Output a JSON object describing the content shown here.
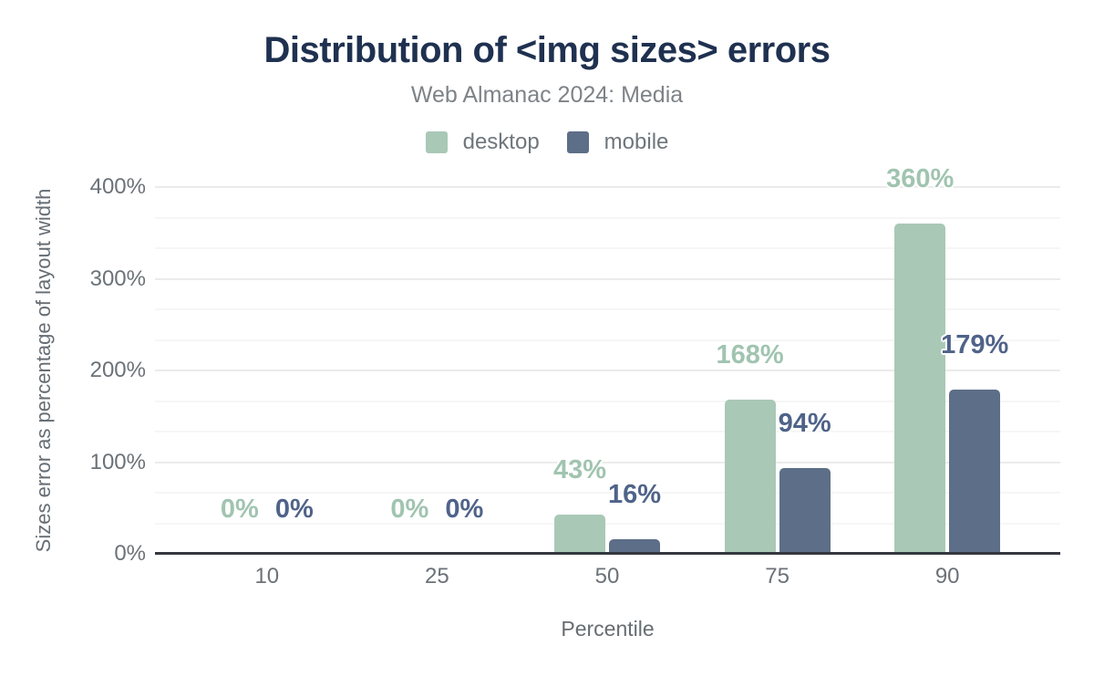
{
  "chart_data": {
    "type": "bar",
    "title": "Distribution of <img sizes> errors",
    "subtitle": "Web Almanac 2024: Media",
    "xlabel": "Percentile",
    "ylabel": "Sizes error as percentage of layout width",
    "categories": [
      "10",
      "25",
      "50",
      "75",
      "90"
    ],
    "series": [
      {
        "name": "desktop",
        "values": [
          0,
          0,
          43,
          168,
          360
        ]
      },
      {
        "name": "mobile",
        "values": [
          0,
          0,
          16,
          94,
          179
        ]
      }
    ],
    "value_suffix": "%",
    "y_ticks": [
      "0%",
      "100%",
      "200%",
      "300%",
      "400%"
    ],
    "ylim": [
      0,
      400
    ],
    "grid": true,
    "legend_position": "top"
  },
  "colors": {
    "title": "#1f3150",
    "subtitle": "#7d8388",
    "legend_text": "#6e767c",
    "tick_text": "#6b7278",
    "axis_title_text": "#666d73",
    "axis_line": "#34383e",
    "gridline_major": "#ebebeb",
    "gridline_minor": "#f6f6f6",
    "series_desktop": "#a9c8b6",
    "series_mobile": "#5d6e88",
    "label_desktop": "#a0c4b0",
    "label_mobile": "#4f6389",
    "background": "#ffffff"
  }
}
